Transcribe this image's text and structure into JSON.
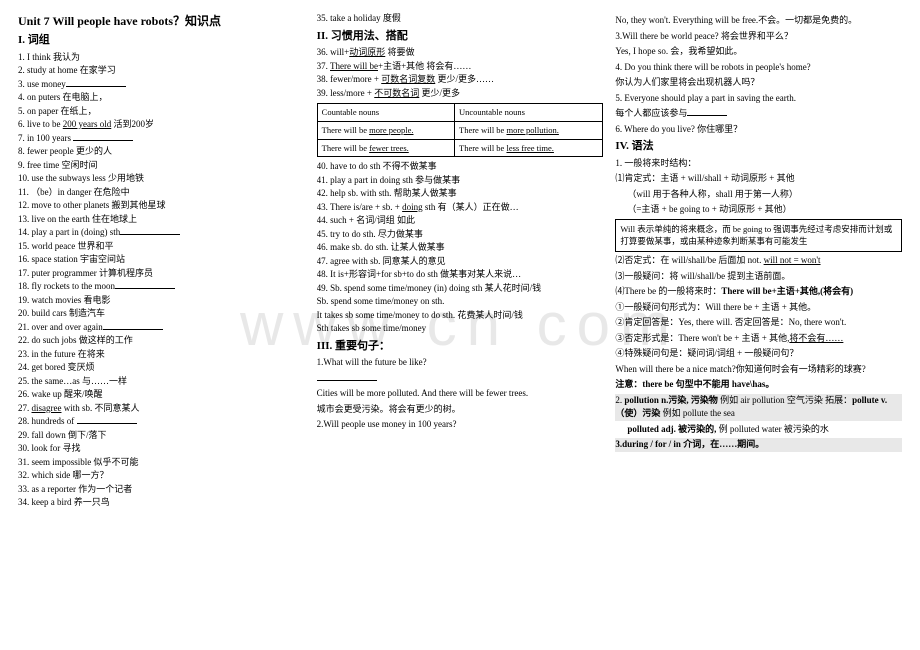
{
  "watermark": "www        cn        com",
  "title": "Unit 7  Will people have robots？知识点",
  "section1_title": "I. 词组",
  "col1_items": [
    {
      "n": "1.",
      "t": "I think 我认为"
    },
    {
      "n": "2.",
      "t": "study at home 在家学习"
    },
    {
      "n": "3.",
      "t": "use money",
      "blank": true
    },
    {
      "n": "4.",
      "t": "on puters 在电脑上，"
    },
    {
      "n": "5.",
      "t": "on paper 在纸上，"
    },
    {
      "n": "6.",
      "t": "live to be ",
      "u": "200 years old",
      "after": " 活到200岁"
    },
    {
      "n": "7.",
      "t": "in 100 years ",
      "blank": true
    },
    {
      "n": "8.",
      "t": "fewer people 更少的人"
    },
    {
      "n": "9.",
      "t": "free time 空闲时间"
    },
    {
      "n": "10.",
      "t": "use the subways less 少用地铁"
    },
    {
      "n": "11.",
      "t": "（be）in danger  在危险中"
    },
    {
      "n": "12.",
      "t": "move to other planets 搬到其他星球"
    },
    {
      "n": "13.",
      "t": "live on the earth 住在地球上"
    },
    {
      "n": "14.",
      "t": "play a part in (doing)  sth",
      "blank": true
    },
    {
      "n": "15.",
      "t": "world peace 世界和平"
    },
    {
      "n": "16.",
      "t": "space station 宇宙空间站"
    },
    {
      "n": "17.",
      "t": "puter programmer 计算机程序员"
    },
    {
      "n": "18.",
      "t": "fly rockets to the moon",
      "blank": true
    },
    {
      "n": "19.",
      "t": "watch movies 看电影"
    },
    {
      "n": "20.",
      "t": "build cars 制造汽车"
    },
    {
      "n": "21.",
      "t": "over and over again",
      "blank": true
    },
    {
      "n": "22.",
      "t": "do such jobs 做这样的工作"
    },
    {
      "n": "23.",
      "t": "in the future  在将来"
    },
    {
      "n": "24.",
      "t": "get bored 变厌烦"
    },
    {
      "n": "25.",
      "t": "the same…as 与……一样"
    },
    {
      "n": "26.",
      "t": "wake up 醒来/唤醒"
    },
    {
      "n": "27.",
      "t": "",
      "u": "disagree",
      "after": " with sb. 不同意某人"
    },
    {
      "n": "28.",
      "t": "hundreds of ",
      "blank": true
    },
    {
      "n": "29.",
      "t": "fall down 倒下/落下"
    },
    {
      "n": "30.",
      "t": "look for 寻找"
    },
    {
      "n": "31.",
      "t": "seem impossible 似乎不可能"
    },
    {
      "n": "32.",
      "t": "which side 哪一方？"
    },
    {
      "n": "33.",
      "t": "as a reporter 作为一个记者"
    },
    {
      "n": "34.",
      "t": "keep a bird 养一只鸟"
    }
  ],
  "col2_items_a": [
    {
      "n": "35.",
      "t": "take a holiday 度假"
    }
  ],
  "section2_title": "II. 习惯用法、搭配",
  "col2_items_b": [
    {
      "n": "36.",
      "t": "will+",
      "u": "动词原形",
      "after": "  将要做"
    },
    {
      "n": "37.",
      "t": "",
      "u": "There will be",
      "after": "+主语+其他   将会有……"
    },
    {
      "n": "38.",
      "t": "fewer/more + ",
      "u": "可数名词复数",
      "after": "  更少/更多……"
    },
    {
      "n": "39.",
      "t": "less/more +  ",
      "u": "不可数名词",
      "after": "   更少/更多"
    }
  ],
  "table": {
    "h1": "Countable  nouns",
    "h2": "Uncountable nouns",
    "r1a": "There will be ",
    "r1au": "more people.",
    "r1b": "There will be ",
    "r1bu": "more pollution.",
    "r2a": "There will be ",
    "r2au": "fewer trees.",
    "r2b": "There will be ",
    "r2bu": "less free time."
  },
  "col2_items_c": [
    {
      "n": "40.",
      "t": "have to do sth    不得不做某事"
    },
    {
      "n": "41.",
      "t": "play a part in doing sth   参与做某事"
    },
    {
      "n": "42.",
      "t": "help sb. with sth.  帮助某人做某事"
    },
    {
      "n": "43.",
      "t": "There is/are + sb. + ",
      "u": "doing",
      "after": " sth 有（某人）正在做…"
    },
    {
      "n": "44.",
      "t": "such + 名词/词组    如此"
    },
    {
      "n": "45.",
      "t": "try to do sth.  尽力做某事"
    },
    {
      "n": "46.",
      "t": "make sb. do sth.   让某人做某事"
    },
    {
      "n": "47.",
      "t": "agree with sb.   同意某人的意见"
    },
    {
      "n": "48.",
      "t": "It is+形容词+for sb+to do sth 做某事对某人来说…"
    },
    {
      "n": "49.",
      "t": "Sb. spend some time/money (in) doing sth 某人花时间/钱"
    },
    {
      "n": "",
      "t": "Sb. spend some time/money on sth."
    },
    {
      "n": "",
      "t": "It takes sb some time/money to do sth.  花费某人时间/钱"
    },
    {
      "n": "",
      "t": "Sth takes sb some time/money"
    }
  ],
  "section3_title": "III. 重要句子：",
  "col2_sentences": [
    "1.What will the future be like?",
    "",
    " Cities will be more polluted. And there will be fewer trees.",
    "城市会更受污染。将会有更少的树。",
    "2.Will people use money in 100 years?"
  ],
  "col3_top": [
    " No, they won't. Everything will be free.不会。一切都是免费的。",
    "3.Will there be world peace? 将会世界和平么？",
    " Yes, I hope so.  会，我希望如此。",
    "4. Do you think there will be robots in people's home?",
    "  你认为人们家里将会出现机器人吗？",
    "5. Everyone should play a part in saving the earth.",
    "  每个人都应该参与",
    "blank",
    "6. Where do you live? 你住哪里？"
  ],
  "section4_title": "IV. 语法",
  "grammar_intro": "1. 一般将来时结构：",
  "grammar_a1": "⑴肯定式：主语 + will/shall + 动词原形 + 其他",
  "grammar_a2": "（will 用于各种人称，shall 用于第一人称）",
  "grammar_a3": "（=主语 + be going to + 动词原形 + 其他）",
  "box1": "Will 表示单纯的将来概念，而 be going to 强调事先经过考虑安排而计划或打算要做某事，或由某种迹象判断某事有可能发生",
  "grammar_b1_pre": "⑵否定式：在 will/shall/be 后面加 not.  ",
  "grammar_b1_u": "will not = won't",
  "grammar_c1": "⑶一般疑问：将 will/shall/be 提到主语前面。",
  "grammar_c2_pre": "⑷There be 的一般将来时：",
  "grammar_c2_bold": "There will be+主语+其他,(将会有)",
  "grammar_d1": "①一般疑问句形式为：Will there be + 主语 + 其他。",
  "grammar_d2": "②肯定回答是：Yes, there will. 否定回答是：No, there won't.",
  "grammar_d3_pre": "③否定形式是：There won't be + 主语 + 其他,",
  "grammar_d3_u": "将不会有……",
  "grammar_d4": "④特殊疑问句是：疑问词/词组 + 一般疑问句？",
  "grammar_d5": "When will there be a nice match?你知道何时会有一场精彩的球赛?",
  "note1": "注意：there be 句型中不能用 have\\has。",
  "note2_pre": "2. ",
  "note2_bold": "pollution n.污染, 污染物",
  "note2_after": "   例如 air pollution 空气污染        拓展：",
  "note2_bold2": "pollute  v.（使）污染",
  "note2_after2": " 例如 pollute the sea",
  "note3_bold": "polluted adj. 被污染的,",
  "note3_after": " 例 polluted water 被污染的水",
  "note4": "3.during / for / in  介词，在……期间。"
}
